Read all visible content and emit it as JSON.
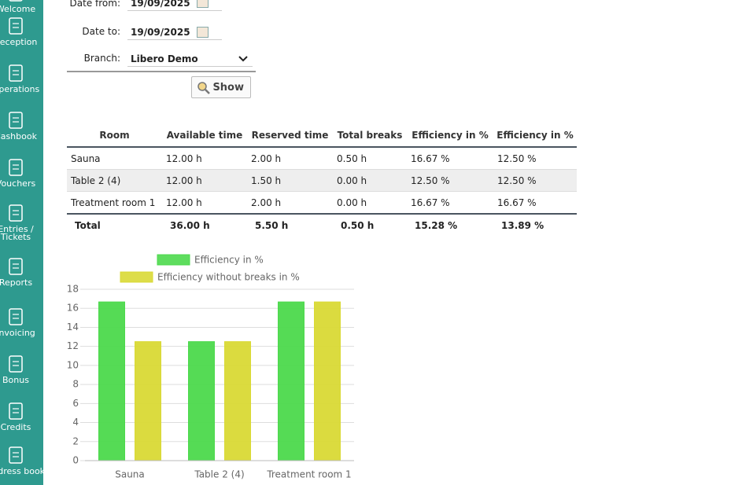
{
  "sidebar": {
    "items": [
      "Welcome",
      "Reception",
      "Operations",
      "Cashbook",
      "Vouchers",
      "Entries / Tickets",
      "Reports",
      "Invoicing",
      "Bonus",
      "Credits",
      "Address book"
    ]
  },
  "form": {
    "date_from_label": "Date from:",
    "date_from": "19/09/2025",
    "date_to_label": "Date to:",
    "date_to": "19/09/2025",
    "branch_label": "Branch:",
    "branch": "Libero Demo",
    "button": "Show"
  },
  "table": {
    "headers": [
      "Room",
      "Available time",
      "Reserved time",
      "Total breaks",
      "Efficiency in %",
      "Efficiency in %"
    ],
    "rows": [
      [
        "Sauna",
        "12.00 h",
        "2.00 h",
        "0.50 h",
        "16.67 %",
        "12.50 %"
      ],
      [
        "Table 2 (4)",
        "12.00 h",
        "1.50 h",
        "0.00 h",
        "12.50 %",
        "12.50 %"
      ],
      [
        "Treatment room 1",
        "12.00 h",
        "2.00 h",
        "0.00 h",
        "16.67 %",
        "16.67 %"
      ]
    ],
    "total": [
      "Total",
      "36.00 h",
      "5.50 h",
      "0.50 h",
      "15.28 %",
      "13.89 %"
    ]
  },
  "chart_data": {
    "type": "bar",
    "categories": [
      "Sauna",
      "Table 2 (4)",
      "Treatment room 1"
    ],
    "series": [
      {
        "name": "Efficiency in %",
        "color": "#4cd94c",
        "values": [
          16.67,
          12.5,
          16.67
        ]
      },
      {
        "name": "Efficiency without breaks in %",
        "color": "#d9d935",
        "values": [
          12.5,
          12.5,
          16.67
        ]
      }
    ],
    "ylim": [
      0,
      18
    ],
    "yticks": [
      0,
      2,
      4,
      6,
      8,
      10,
      12,
      14,
      16,
      18
    ],
    "grid": true
  }
}
